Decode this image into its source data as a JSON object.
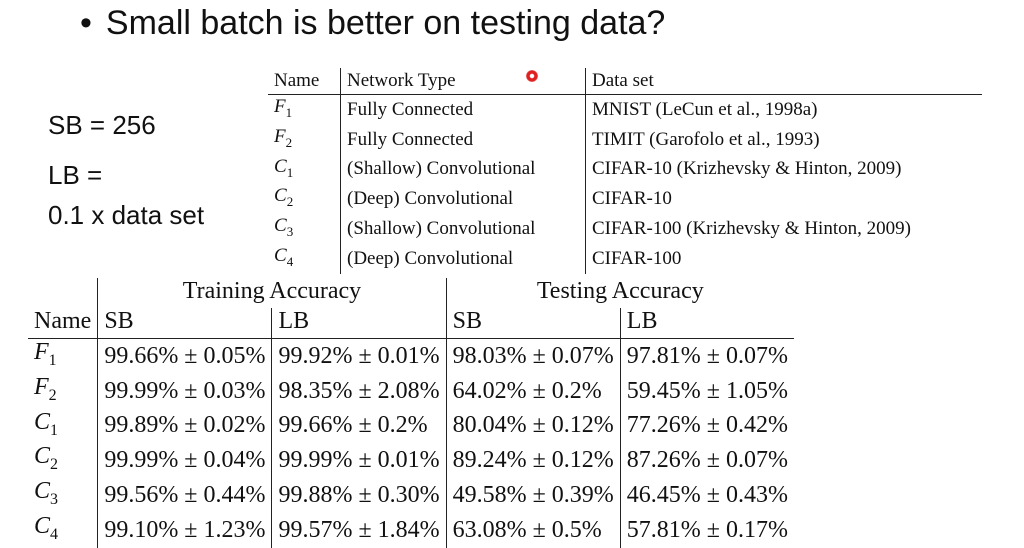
{
  "title": {
    "bullet": "•",
    "text": "Small batch is better on testing data?"
  },
  "side": {
    "sb": "SB = 256",
    "lb_line1": "LB =",
    "lb_line2": "0.1 x data set"
  },
  "network_table": {
    "headers": [
      "Name",
      "Network Type",
      "Data set"
    ],
    "rows": [
      {
        "name": "F",
        "sub": "1",
        "type": "Fully Connected",
        "dataset": "MNIST (LeCun et al., 1998a)"
      },
      {
        "name": "F",
        "sub": "2",
        "type": "Fully Connected",
        "dataset": "TIMIT (Garofolo et al., 1993)"
      },
      {
        "name": "C",
        "sub": "1",
        "type": "(Shallow) Convolutional",
        "dataset": "CIFAR-10 (Krizhevsky & Hinton, 2009)"
      },
      {
        "name": "C",
        "sub": "2",
        "type": "(Deep) Convolutional",
        "dataset": "CIFAR-10"
      },
      {
        "name": "C",
        "sub": "3",
        "type": "(Shallow) Convolutional",
        "dataset": "CIFAR-100 (Krizhevsky & Hinton, 2009)"
      },
      {
        "name": "C",
        "sub": "4",
        "type": "(Deep) Convolutional",
        "dataset": "CIFAR-100"
      }
    ]
  },
  "accuracy_table": {
    "group_headers": {
      "training": "Training Accuracy",
      "testing": "Testing Accuracy"
    },
    "sub_headers": {
      "name": "Name",
      "sb": "SB",
      "lb": "LB"
    },
    "rows": [
      {
        "name": "F",
        "sub": "1",
        "train_sb": "99.66% ± 0.05%",
        "train_lb": "99.92% ± 0.01%",
        "test_sb": "98.03% ± 0.07%",
        "test_lb": "97.81% ± 0.07%"
      },
      {
        "name": "F",
        "sub": "2",
        "train_sb": "99.99% ± 0.03%",
        "train_lb": "98.35% ± 2.08%",
        "test_sb": "64.02% ± 0.2%",
        "test_lb": "59.45% ± 1.05%"
      },
      {
        "name": "C",
        "sub": "1",
        "train_sb": "99.89% ± 0.02%",
        "train_lb": "99.66% ± 0.2%",
        "test_sb": "80.04% ± 0.12%",
        "test_lb": "77.26% ± 0.42%"
      },
      {
        "name": "C",
        "sub": "2",
        "train_sb": "99.99% ± 0.04%",
        "train_lb": "99.99% ± 0.01%",
        "test_sb": "89.24% ± 0.12%",
        "test_lb": "87.26% ± 0.07%"
      },
      {
        "name": "C",
        "sub": "3",
        "train_sb": "99.56% ± 0.44%",
        "train_lb": "99.88% ± 0.30%",
        "test_sb": "49.58% ± 0.39%",
        "test_lb": "46.45% ± 0.43%"
      },
      {
        "name": "C",
        "sub": "4",
        "train_sb": "99.10% ± 1.23%",
        "train_lb": "99.57% ± 1.84%",
        "test_sb": "63.08% ± 0.5%",
        "test_lb": "57.81% ± 0.17%"
      }
    ]
  },
  "laser_pointer_color": "#e02020"
}
